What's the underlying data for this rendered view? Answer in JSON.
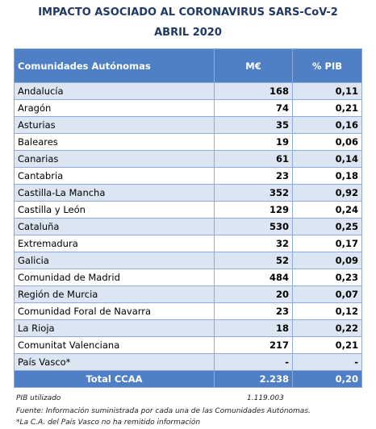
{
  "header": {
    "title": "IMPACTO ASOCIADO AL CORONAVIRUS SARS-CoV-2",
    "subtitle": "ABRIL 2020"
  },
  "table": {
    "columns": [
      "Comunidades Autónomas",
      "M€",
      "% PIB"
    ],
    "rows": [
      [
        "Andalucía",
        "168",
        "0,11"
      ],
      [
        "Aragón",
        "74",
        "0,21"
      ],
      [
        "Asturias",
        "35",
        "0,16"
      ],
      [
        "Baleares",
        "19",
        "0,06"
      ],
      [
        "Canarias",
        "61",
        "0,14"
      ],
      [
        "Cantabria",
        "23",
        "0,18"
      ],
      [
        "Castilla-La Mancha",
        "352",
        "0,92"
      ],
      [
        "Castilla y León",
        "129",
        "0,24"
      ],
      [
        "Cataluña",
        "530",
        "0,25"
      ],
      [
        "Extremadura",
        "32",
        "0,17"
      ],
      [
        "Galicia",
        "52",
        "0,09"
      ],
      [
        "Comunidad de Madrid",
        "484",
        "0,23"
      ],
      [
        "Región de Murcia",
        "20",
        "0,07"
      ],
      [
        "Comunidad Foral de Navarra",
        "23",
        "0,12"
      ],
      [
        "La Rioja",
        "18",
        "0,22"
      ],
      [
        "Comunitat Valenciana",
        "217",
        "0,21"
      ],
      [
        "País Vasco*",
        "-",
        "-"
      ]
    ],
    "total": [
      "Total CCAA",
      "2.238",
      "0,20"
    ]
  },
  "footer": {
    "pib_label": "PIB utilizado",
    "pib_value": "1.119.003",
    "source": "Fuente: Información suministrada por cada una de las Comunidades Autónomas.",
    "note": "*La C.A. del País Vasco no ha remitido información"
  }
}
